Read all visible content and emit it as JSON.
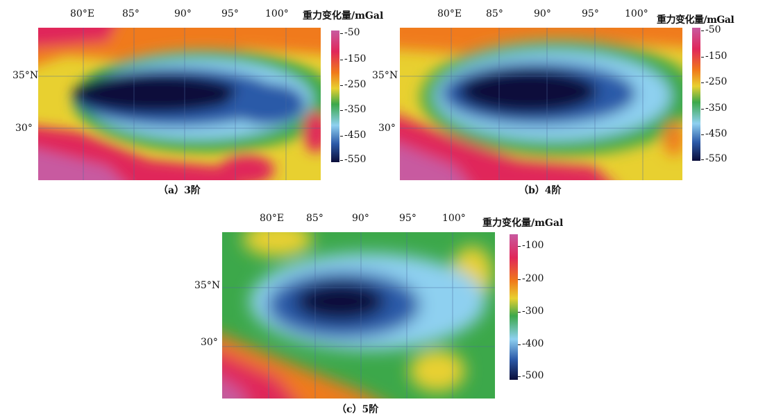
{
  "unit_label": "重力变化量/mGal",
  "lon_labels": [
    "80°E",
    "85°",
    "90°",
    "95°",
    "100°"
  ],
  "lat_labels": [
    "35°N",
    "30°"
  ],
  "panels": [
    {
      "caption": "（a）3阶",
      "colorbar": [
        "-50",
        "-150",
        "-250",
        "-350",
        "-450",
        "-550"
      ]
    },
    {
      "caption": "（b）4阶",
      "colorbar": [
        "-50",
        "-150",
        "-250",
        "-350",
        "-450",
        "-550"
      ]
    },
    {
      "caption": "（c）5阶",
      "colorbar": [
        "-100",
        "-200",
        "-300",
        "-400",
        "-500"
      ]
    }
  ],
  "colormap": [
    "#c85aa0",
    "#e0275a",
    "#f07a1a",
    "#e8d030",
    "#3ca84a",
    "#8ed0f0",
    "#2c5aa8",
    "#0a0d3a"
  ]
}
